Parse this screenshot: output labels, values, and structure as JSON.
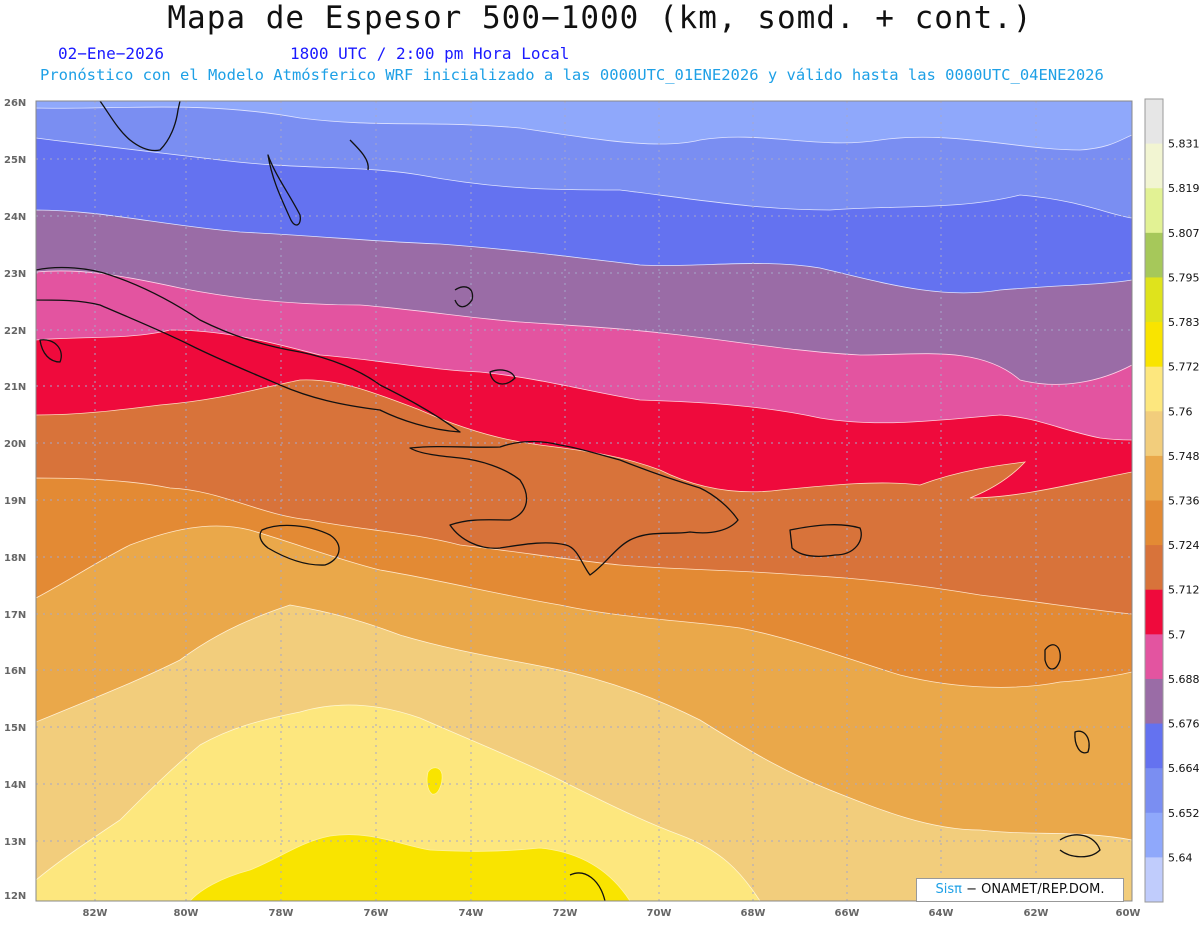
{
  "header": {
    "title": "Mapa de Espesor 500−1000 (km, somd. + cont.)",
    "date": "02−Ene−2026",
    "time": "1800 UTC / 2:00 pm Hora Local",
    "info": "Pronóstico con el Modelo Atmósferico WRF inicializado a las 0000UTC_01ENE2026 y válido hasta las  0000UTC_04ENE2026"
  },
  "map": {
    "region": "Caribe",
    "lat_range": [
      12,
      26
    ],
    "lon_range": [
      -83,
      -60
    ],
    "lat_labels": [
      "26N",
      "25N",
      "24N",
      "23N",
      "22N",
      "21N",
      "20N",
      "19N",
      "18N",
      "17N",
      "16N",
      "15N",
      "14N",
      "13N",
      "12N"
    ],
    "lon_labels": [
      "82W",
      "80W",
      "78W",
      "76W",
      "74W",
      "72W",
      "70W",
      "68W",
      "66W",
      "64W",
      "62W",
      "60W"
    ]
  },
  "colorbar": {
    "labels": [
      "5.831",
      "5.819",
      "5.807",
      "5.795",
      "5.783",
      "5.772",
      "5.76",
      "5.748",
      "5.736",
      "5.724",
      "5.712",
      "5.7",
      "5.688",
      "5.676",
      "5.664",
      "5.652",
      "5.64"
    ],
    "colors": [
      "#e6e6e6",
      "#f2f5d2",
      "#e2f294",
      "#a6c85a",
      "#dfe31c",
      "#f9e400",
      "#fde77e",
      "#f2cd7c",
      "#eaa84a",
      "#e38a34",
      "#d8733a",
      "#ef0a3c",
      "#e354a0",
      "#9a6ca6",
      "#6472f0",
      "#7a8ef2",
      "#8fa8fb",
      "#c0ccfc"
    ]
  },
  "credit": {
    "brand": "Sisπ",
    "text": " − ONAMET/REP.DOM."
  }
}
